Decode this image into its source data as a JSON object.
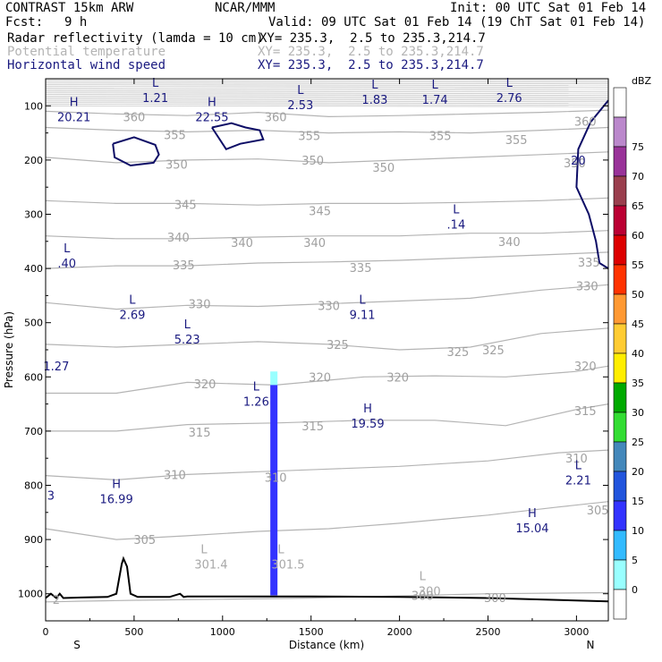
{
  "header": {
    "model": "CONTRAST 15km ARW",
    "org": "NCAR/MMM",
    "init": "Init: 00 UTC Sat 01 Feb 14",
    "fcst_label": "Fcst:",
    "fcst_value": "9 h",
    "valid": "Valid: 09 UTC Sat 01 Feb 14 (19 ChT Sat 01 Feb 14)"
  },
  "fields": [
    {
      "name": "Radar reflectivity (lamda = 10 cm)",
      "xy": "XY= 235.3,  2.5 to 235.3,214.7",
      "color": "#000000"
    },
    {
      "name": "Potential temperature",
      "xy": "XY= 235.3,  2.5 to 235.3,214.7",
      "color": "#b4b4b4"
    },
    {
      "name": "Horizontal wind speed",
      "xy": "XY= 235.3,  2.5 to 235.3,214.7",
      "color": "#1a1a80"
    }
  ],
  "chart_data": {
    "type": "cross-section",
    "xlabel": "Distance (km)",
    "ylabel": "Pressure (hPa)",
    "xlim": [
      0,
      3180
    ],
    "ylim": [
      1050,
      50
    ],
    "xticks": [
      0,
      500,
      1000,
      1500,
      2000,
      2500,
      3000
    ],
    "yticks": [
      100,
      200,
      300,
      400,
      500,
      600,
      700,
      800,
      900,
      1000
    ],
    "end_labels": {
      "left": "S",
      "right": "N"
    },
    "colorbar": {
      "unit": "dBZ",
      "levels": [
        0,
        5,
        10,
        15,
        20,
        25,
        30,
        35,
        40,
        45,
        50,
        55,
        60,
        65,
        70,
        75
      ],
      "colors": [
        "#ffffff",
        "#99ffff",
        "#33bbff",
        "#3333ff",
        "#2255dd",
        "#4488bb",
        "#33dd33",
        "#00aa00",
        "#ffee00",
        "#ffcc33",
        "#ff9933",
        "#ff3300",
        "#dd0000",
        "#bb0033",
        "#9a3f4e",
        "#993399",
        "#bb88cc",
        "#ffffff"
      ]
    },
    "theta_contours": [
      {
        "value": 300,
        "x": [
          0,
          500,
          1000,
          1500,
          2000,
          2500,
          3180
        ],
        "p": [
          1015,
          1012,
          1010,
          1008,
          1004,
          1000,
          998
        ]
      },
      {
        "value": 305,
        "x": [
          0,
          400,
          800,
          1200,
          1600,
          2000,
          2500,
          2900,
          3180
        ],
        "p": [
          880,
          900,
          893,
          885,
          880,
          870,
          855,
          840,
          830
        ]
      },
      {
        "value": 310,
        "x": [
          0,
          400,
          800,
          1200,
          1600,
          2000,
          2500,
          2900,
          3180
        ],
        "p": [
          782,
          790,
          780,
          775,
          770,
          765,
          755,
          740,
          735
        ]
      },
      {
        "value": 315,
        "x": [
          0,
          400,
          800,
          1300,
          1800,
          2200,
          2600,
          3000,
          3180
        ],
        "p": [
          700,
          700,
          688,
          685,
          680,
          680,
          690,
          660,
          650
        ]
      },
      {
        "value": 320,
        "x": [
          0,
          400,
          800,
          1300,
          1800,
          2200,
          2600,
          3000,
          3180
        ],
        "p": [
          630,
          630,
          610,
          615,
          600,
          598,
          600,
          590,
          580
        ]
      },
      {
        "value": 325,
        "x": [
          0,
          400,
          800,
          1200,
          1600,
          2000,
          2400,
          2800,
          3180
        ],
        "p": [
          540,
          545,
          540,
          535,
          540,
          550,
          545,
          520,
          510
        ]
      },
      {
        "value": 330,
        "x": [
          0,
          400,
          800,
          1200,
          1600,
          2000,
          2400,
          2800,
          3180
        ],
        "p": [
          463,
          475,
          468,
          470,
          465,
          460,
          455,
          440,
          430
        ]
      },
      {
        "value": 335,
        "x": [
          0,
          400,
          800,
          1200,
          1600,
          2000,
          2400,
          2800,
          3180
        ],
        "p": [
          400,
          395,
          395,
          390,
          388,
          385,
          380,
          375,
          370
        ]
      },
      {
        "value": 340,
        "x": [
          0,
          400,
          800,
          1200,
          1600,
          2000,
          2400,
          2800,
          3180
        ],
        "p": [
          340,
          345,
          345,
          342,
          340,
          340,
          335,
          335,
          330
        ]
      },
      {
        "value": 345,
        "x": [
          0,
          400,
          800,
          1200,
          1600,
          2000,
          2400,
          2800,
          3180
        ],
        "p": [
          275,
          280,
          280,
          283,
          280,
          280,
          278,
          275,
          270
        ]
      },
      {
        "value": 350,
        "x": [
          0,
          400,
          800,
          1200,
          1600,
          2000,
          2400,
          2800,
          3180
        ],
        "p": [
          195,
          205,
          200,
          198,
          205,
          200,
          195,
          190,
          185
        ]
      },
      {
        "value": 355,
        "x": [
          0,
          400,
          800,
          1200,
          1600,
          2000,
          2400,
          2800,
          3180
        ],
        "p": [
          140,
          145,
          148,
          145,
          150,
          148,
          150,
          145,
          140
        ]
      },
      {
        "value": 360,
        "x": [
          0,
          400,
          800,
          1200,
          1600,
          2000,
          2400,
          2800,
          3180
        ],
        "p": [
          110,
          115,
          118,
          112,
          120,
          118,
          115,
          112,
          108
        ]
      }
    ],
    "contour_labels": [
      {
        "text": "360",
        "x": 500,
        "p": 120
      },
      {
        "text": "360",
        "x": 1300,
        "p": 120
      },
      {
        "text": "360",
        "x": 3050,
        "p": 128
      },
      {
        "text": "355",
        "x": 730,
        "p": 153
      },
      {
        "text": "355",
        "x": 1490,
        "p": 155
      },
      {
        "text": "355",
        "x": 2230,
        "p": 155
      },
      {
        "text": "355",
        "x": 2660,
        "p": 162
      },
      {
        "text": "350",
        "x": 740,
        "p": 208
      },
      {
        "text": "350",
        "x": 1510,
        "p": 200
      },
      {
        "text": "350",
        "x": 1910,
        "p": 213
      },
      {
        "text": "350",
        "x": 2990,
        "p": 205
      },
      {
        "text": "345",
        "x": 790,
        "p": 282
      },
      {
        "text": "345",
        "x": 1550,
        "p": 293
      },
      {
        "text": "340",
        "x": 750,
        "p": 342
      },
      {
        "text": "340",
        "x": 1110,
        "p": 352
      },
      {
        "text": "340",
        "x": 1520,
        "p": 352
      },
      {
        "text": "340",
        "x": 2620,
        "p": 350
      },
      {
        "text": "335",
        "x": 780,
        "p": 393
      },
      {
        "text": "335",
        "x": 1780,
        "p": 398
      },
      {
        "text": "335",
        "x": 3070,
        "p": 388
      },
      {
        "text": "330",
        "x": 870,
        "p": 465
      },
      {
        "text": "330",
        "x": 1600,
        "p": 468
      },
      {
        "text": "330",
        "x": 3060,
        "p": 432
      },
      {
        "text": "325",
        "x": 1650,
        "p": 540
      },
      {
        "text": "325",
        "x": 2330,
        "p": 553
      },
      {
        "text": "325",
        "x": 2530,
        "p": 550
      },
      {
        "text": "320",
        "x": 900,
        "p": 613
      },
      {
        "text": "320",
        "x": 1550,
        "p": 600
      },
      {
        "text": "320",
        "x": 1990,
        "p": 600
      },
      {
        "text": "320",
        "x": 3050,
        "p": 580
      },
      {
        "text": "315",
        "x": 870,
        "p": 702
      },
      {
        "text": "315",
        "x": 1510,
        "p": 690
      },
      {
        "text": "315",
        "x": 3050,
        "p": 662
      },
      {
        "text": "310",
        "x": 730,
        "p": 780
      },
      {
        "text": "310",
        "x": 1300,
        "p": 785
      },
      {
        "text": "310",
        "x": 3000,
        "p": 750
      },
      {
        "text": "305",
        "x": 560,
        "p": 900
      },
      {
        "text": "305",
        "x": 3120,
        "p": 845
      },
      {
        "text": "300",
        "x": 2130,
        "p": 1003
      },
      {
        "text": "300",
        "x": 2540,
        "p": 1007
      }
    ],
    "theta_extrema": [
      {
        "letter": "L",
        "value": "301.4",
        "x": 935,
        "p": 945
      },
      {
        "letter": "L",
        "value": "301.5",
        "x": 1370,
        "p": 945
      },
      {
        "letter": "L",
        "value": "300",
        "x": 2170,
        "p": 995
      },
      {
        "letter": "",
        "value": "2",
        "x": 60,
        "p": 1010
      }
    ],
    "wind_contours": [
      {
        "x": [
          380,
          500,
          620,
          640,
          610,
          480,
          390,
          380
        ],
        "p": [
          170,
          158,
          172,
          190,
          205,
          210,
          195,
          170
        ]
      },
      {
        "x": [
          940,
          1050,
          1130,
          1210,
          1230,
          1100,
          1020,
          940
        ],
        "p": [
          140,
          132,
          140,
          145,
          162,
          170,
          180,
          140
        ]
      },
      {
        "x": [
          3180,
          3080,
          3010,
          3000,
          3070,
          3110,
          3130,
          3180
        ],
        "p": [
          90,
          130,
          180,
          250,
          300,
          350,
          390,
          400
        ]
      }
    ],
    "wind_extrema": [
      {
        "letter": "L",
        "value": "1.21",
        "x": 620,
        "p": 85
      },
      {
        "letter": "L",
        "value": "2.53",
        "x": 1440,
        "p": 98
      },
      {
        "letter": "L",
        "value": "1.83",
        "x": 1860,
        "p": 88
      },
      {
        "letter": "L",
        "value": "1.74",
        "x": 2200,
        "p": 88
      },
      {
        "letter": "L",
        "value": "2.76",
        "x": 2620,
        "p": 85
      },
      {
        "letter": "H",
        "value": "20.21",
        "x": 160,
        "p": 120
      },
      {
        "letter": "H",
        "value": "22.55",
        "x": 940,
        "p": 120
      },
      {
        "letter": "",
        "value": "20",
        "x": 3010,
        "p": 200
      },
      {
        "letter": "L",
        "value": ".14",
        "x": 2320,
        "p": 318
      },
      {
        "letter": "L",
        "value": ".40",
        "x": 120,
        "p": 390
      },
      {
        "letter": "L",
        "value": "2.69",
        "x": 490,
        "p": 485
      },
      {
        "letter": "L",
        "value": "5.23",
        "x": 800,
        "p": 530
      },
      {
        "letter": "L",
        "value": "9.11",
        "x": 1790,
        "p": 485
      },
      {
        "letter": "",
        "value": "1.27",
        "x": 60,
        "p": 580
      },
      {
        "letter": "L",
        "value": "1.26",
        "x": 1190,
        "p": 645
      },
      {
        "letter": "H",
        "value": "19.59",
        "x": 1820,
        "p": 685
      },
      {
        "letter": "L",
        "value": "2.21",
        "x": 3010,
        "p": 790
      },
      {
        "letter": "",
        "value": "3",
        "x": 30,
        "p": 818
      },
      {
        "letter": "H",
        "value": "16.99",
        "x": 400,
        "p": 825
      },
      {
        "letter": "H",
        "value": "15.04",
        "x": 2750,
        "p": 878
      }
    ],
    "reflectivity_column": {
      "x": 1290,
      "p_top": 590,
      "p_bottom": 1003,
      "dbz": 12
    },
    "terrain": {
      "x": [
        0,
        30,
        60,
        80,
        100,
        200,
        350,
        400,
        430,
        440,
        460,
        480,
        520,
        700,
        760,
        780,
        800,
        1000,
        1500,
        2000,
        2500,
        3180
      ],
      "p": [
        1008,
        1000,
        1008,
        1000,
        1008,
        1007,
        1006,
        1000,
        945,
        935,
        950,
        1000,
        1006,
        1006,
        1000,
        1006,
        1005,
        1005,
        1005,
        1006,
        1008,
        1014
      ]
    }
  }
}
